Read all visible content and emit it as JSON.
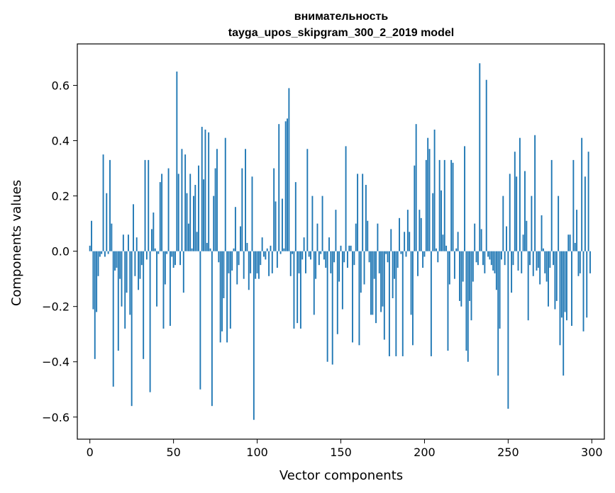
{
  "chart_data": {
    "type": "bar",
    "title": "внимательность",
    "subtitle": "tayga_upos_skipgram_300_2_2019 model",
    "xlabel": "Vector components",
    "ylabel": "Components values",
    "xlim": [
      -7.5,
      307.5
    ],
    "ylim": [
      -0.68,
      0.75
    ],
    "xticks": [
      0,
      50,
      100,
      150,
      200,
      250,
      300
    ],
    "xtick_labels": [
      "0",
      "50",
      "100",
      "150",
      "200",
      "250",
      "300"
    ],
    "yticks": [
      -0.6,
      -0.4,
      -0.2,
      0.0,
      0.2,
      0.4,
      0.6
    ],
    "ytick_labels": [
      "−0.6",
      "−0.4",
      "−0.2",
      "0.0",
      "0.2",
      "0.4",
      "0.6"
    ],
    "bar_color": "#1f77b4",
    "grid": false,
    "x": "integers 0..299",
    "values": [
      0.02,
      0.11,
      -0.21,
      -0.39,
      -0.22,
      -0.09,
      -0.02,
      -0.01,
      0.35,
      -0.02,
      0.21,
      -0.01,
      0.33,
      0.1,
      -0.49,
      -0.07,
      -0.06,
      -0.36,
      -0.1,
      -0.2,
      0.06,
      -0.28,
      -0.15,
      0.06,
      -0.23,
      -0.56,
      0.17,
      -0.09,
      0.05,
      -0.14,
      -0.1,
      -0.05,
      -0.39,
      0.33,
      -0.03,
      0.33,
      -0.51,
      0.08,
      0.14,
      0.01,
      -0.2,
      -0.01,
      0.25,
      0.28,
      -0.28,
      -0.12,
      -0.01,
      0.3,
      -0.27,
      -0.02,
      -0.06,
      -0.05,
      0.65,
      0.28,
      -0.05,
      0.37,
      -0.15,
      0.35,
      0.21,
      0.1,
      0.28,
      0.01,
      0.2,
      0.24,
      0.07,
      0.31,
      -0.5,
      0.45,
      0.26,
      0.44,
      0.03,
      0.43,
      0.01,
      -0.56,
      0.2,
      0.3,
      0.37,
      -0.04,
      -0.33,
      -0.29,
      -0.17,
      0.41,
      -0.33,
      -0.08,
      -0.28,
      -0.07,
      0.01,
      0.16,
      -0.12,
      -0.05,
      0.09,
      0.3,
      -0.1,
      0.37,
      0.03,
      -0.14,
      -0.08,
      0.27,
      -0.61,
      -0.1,
      -0.08,
      -0.1,
      -0.05,
      0.05,
      -0.02,
      -0.03,
      0.01,
      -0.09,
      0.02,
      -0.08,
      0.3,
      0.18,
      -0.06,
      0.46,
      -0.01,
      0.19,
      0.01,
      0.47,
      0.48,
      0.59,
      -0.09,
      -0.01,
      -0.28,
      0.25,
      -0.26,
      -0.08,
      -0.28,
      -0.03,
      0.05,
      -0.08,
      0.37,
      -0.02,
      -0.03,
      0.2,
      -0.23,
      -0.1,
      0.1,
      -0.05,
      -0.01,
      0.2,
      -0.03,
      -0.06,
      -0.4,
      0.05,
      -0.08,
      -0.41,
      -0.04,
      0.15,
      -0.3,
      -0.11,
      0.02,
      -0.21,
      -0.04,
      0.38,
      -0.06,
      0.02,
      0.02,
      -0.33,
      -0.05,
      0.1,
      0.28,
      -0.34,
      -0.15,
      0.28,
      -0.12,
      0.24,
      0.11,
      -0.04,
      -0.23,
      -0.23,
      -0.1,
      -0.26,
      0.1,
      -0.08,
      -0.22,
      -0.2,
      -0.32,
      -0.01,
      -0.04,
      -0.38,
      0.08,
      -0.17,
      -0.1,
      -0.38,
      -0.06,
      0.12,
      -0.01,
      -0.38,
      0.07,
      -0.02,
      0.15,
      0.07,
      -0.23,
      -0.34,
      0.31,
      0.46,
      -0.09,
      0.15,
      0.12,
      -0.06,
      -0.02,
      0.33,
      0.41,
      0.37,
      -0.38,
      0.21,
      0.44,
      0.01,
      -0.04,
      0.33,
      0.22,
      0.06,
      0.33,
      0.02,
      -0.36,
      -0.12,
      0.33,
      0.32,
      -0.1,
      0.01,
      0.07,
      -0.18,
      -0.2,
      -0.11,
      0.38,
      -0.36,
      -0.4,
      -0.18,
      -0.25,
      -0.11,
      0.1,
      -0.04,
      -0.05,
      0.68,
      0.08,
      -0.05,
      -0.08,
      0.62,
      -0.02,
      -0.03,
      -0.05,
      -0.07,
      -0.08,
      -0.14,
      -0.45,
      -0.28,
      -0.03,
      0.2,
      -0.05,
      0.09,
      -0.57,
      0.28,
      -0.15,
      -0.05,
      0.36,
      0.27,
      -0.07,
      0.41,
      -0.08,
      0.06,
      0.29,
      0.11,
      -0.25,
      -0.05,
      0.2,
      -0.09,
      0.42,
      -0.07,
      -0.06,
      -0.12,
      0.13,
      0.01,
      -0.08,
      -0.11,
      -0.2,
      -0.06,
      0.33,
      -0.05,
      -0.21,
      -0.18,
      0.2,
      -0.34,
      -0.24,
      -0.45,
      -0.22,
      -0.25,
      0.06,
      0.06,
      -0.27,
      0.33,
      0.03,
      0.15,
      -0.09,
      -0.08,
      0.41,
      -0.29,
      0.27,
      -0.24,
      0.36,
      -0.08
    ]
  }
}
